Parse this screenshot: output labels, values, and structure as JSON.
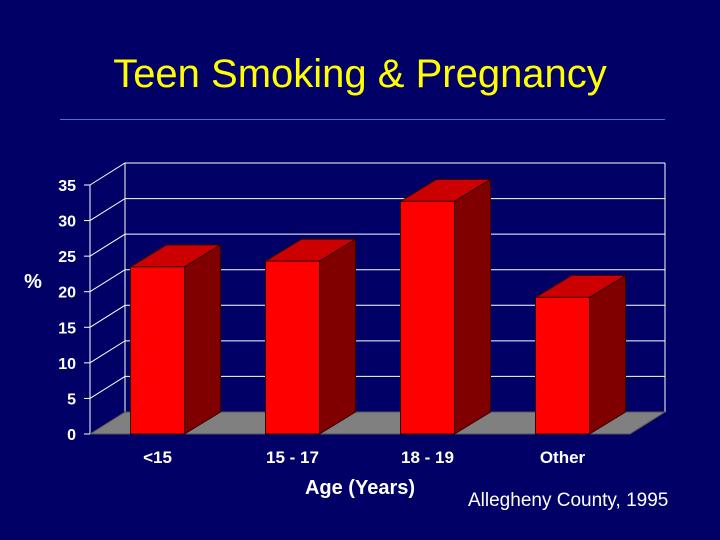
{
  "slide": {
    "title": "Teen Smoking & Pregnancy",
    "source_note": "Allegheny County, 1995"
  },
  "colors": {
    "background": "#000066",
    "title": "#ffff00",
    "bar_front": "#ff0000",
    "bar_top": "#cc0000",
    "bar_side": "#800000",
    "floor": "#808080"
  },
  "chart_data": {
    "type": "bar",
    "categories": [
      "<15",
      "15 - 17",
      "18 - 19",
      "Other"
    ],
    "values": [
      23.5,
      24.3,
      32.7,
      19.2
    ],
    "xlabel": "Age (Years)",
    "ylabel": "%",
    "ylim": [
      0,
      35
    ],
    "yticks": [
      0,
      5,
      10,
      15,
      20,
      25,
      30,
      35
    ],
    "grid": true,
    "style": "3d"
  }
}
